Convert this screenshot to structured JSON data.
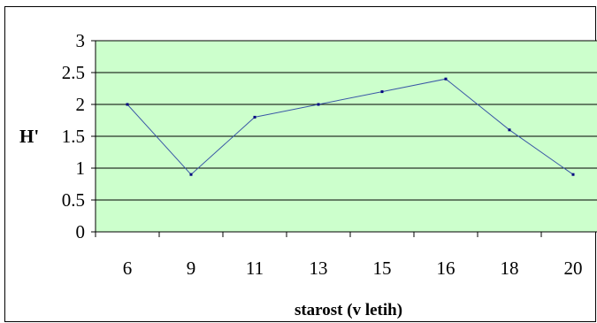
{
  "chart_data": {
    "type": "line",
    "categories": [
      "6",
      "9",
      "11",
      "13",
      "15",
      "16",
      "18",
      "20"
    ],
    "series": [
      {
        "values": [
          2.0,
          0.9,
          1.8,
          2.0,
          2.2,
          2.4,
          1.6,
          0.9
        ]
      }
    ],
    "xlabel": "starost (v letih)",
    "ylabel": "H'",
    "ylim": [
      0,
      3
    ],
    "yticks": [
      "0",
      "0.5",
      "1",
      "1.5",
      "2",
      "2.5",
      "3"
    ],
    "grid": true,
    "colors": {
      "plot_background": "#ccffcc",
      "line": "#3a57a6",
      "marker": "#000080",
      "gridline": "#000000",
      "frame": "#000000"
    }
  }
}
